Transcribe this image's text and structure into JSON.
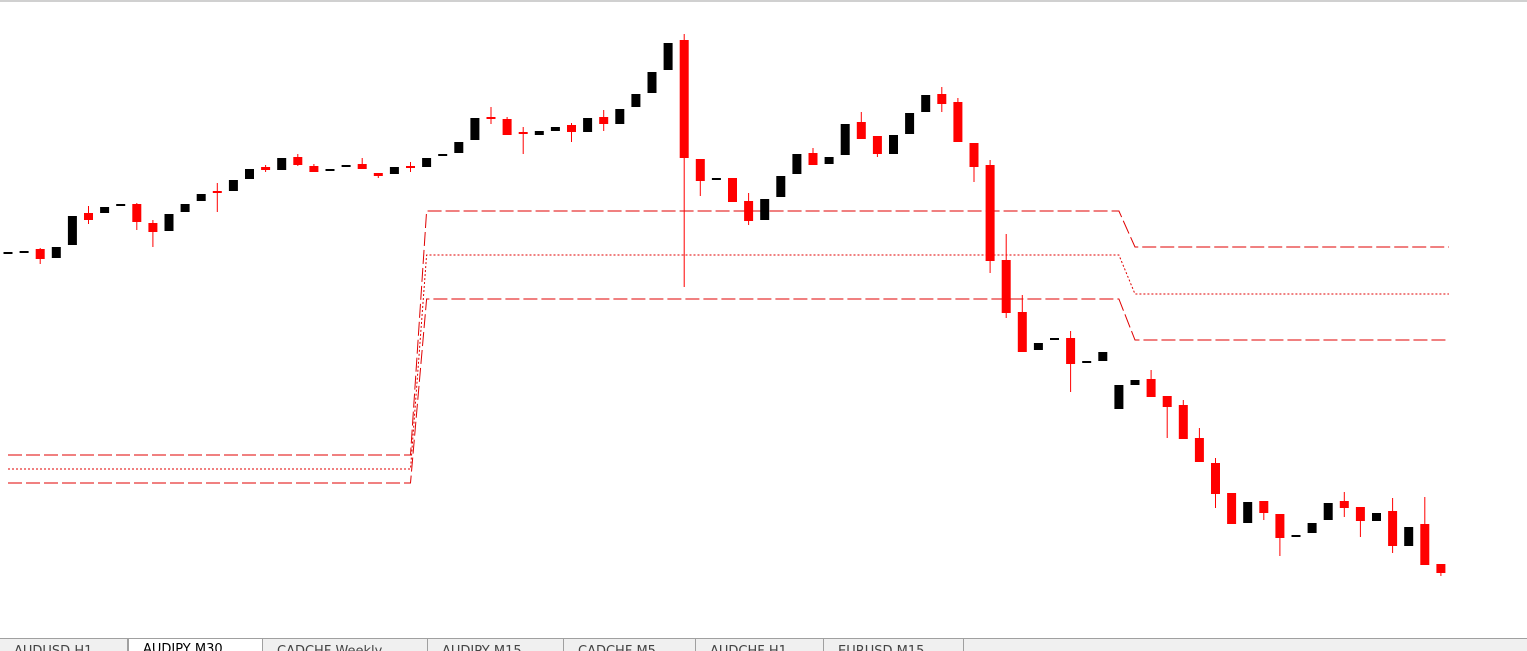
{
  "chart_data": {
    "type": "candlestick",
    "ylim": [
      0,
      600
    ],
    "up_color": "#000000",
    "down_color": "#ff0000",
    "open": [
      347,
      348,
      351,
      342,
      355,
      387,
      387,
      395,
      396,
      377,
      369,
      388,
      399,
      409,
      409,
      421,
      433,
      430,
      443,
      434,
      430,
      434,
      436,
      427,
      426,
      434,
      433,
      445,
      447,
      460,
      483,
      481,
      468,
      465,
      469,
      475,
      468,
      483,
      476,
      493,
      507,
      530,
      560,
      441,
      421,
      422,
      399,
      380,
      403,
      426,
      447,
      436,
      445,
      478,
      464,
      446,
      466,
      488,
      506,
      498,
      457,
      435,
      340,
      288,
      250,
      261,
      262,
      238,
      239,
      191,
      215,
      221,
      204,
      195,
      162,
      137,
      107,
      77,
      99,
      86,
      64,
      67,
      80,
      99,
      93,
      79,
      89,
      54,
      76,
      36
    ],
    "high": [
      347,
      348,
      352,
      353,
      384,
      394,
      393,
      395,
      397,
      380,
      386,
      396,
      406,
      417,
      420,
      431,
      435,
      442,
      446,
      436,
      430,
      434,
      442,
      427,
      433,
      438,
      442,
      445,
      458,
      482,
      493,
      483,
      473,
      469,
      473,
      477,
      482,
      490,
      491,
      506,
      528,
      557,
      566,
      441,
      421,
      422,
      407,
      401,
      424,
      446,
      452,
      443,
      476,
      488,
      464,
      465,
      487,
      505,
      513,
      502,
      457,
      440,
      366,
      305,
      257,
      261,
      269,
      238,
      248,
      215,
      220,
      230,
      204,
      200,
      172,
      142,
      107,
      98,
      99,
      86,
      64,
      77,
      97,
      108,
      93,
      87,
      102,
      73,
      103,
      36
    ],
    "low": [
      347,
      348,
      336,
      342,
      355,
      376,
      387,
      395,
      370,
      353,
      369,
      388,
      399,
      388,
      409,
      421,
      428,
      430,
      434,
      428,
      430,
      434,
      431,
      422,
      426,
      428,
      433,
      445,
      447,
      460,
      476,
      465,
      446,
      465,
      469,
      458,
      468,
      469,
      476,
      493,
      507,
      530,
      313,
      404,
      421,
      398,
      375,
      380,
      403,
      426,
      435,
      436,
      445,
      461,
      443,
      446,
      466,
      488,
      488,
      458,
      418,
      327,
      282,
      248,
      250,
      261,
      208,
      238,
      239,
      191,
      215,
      203,
      162,
      161,
      138,
      92,
      76,
      77,
      80,
      44,
      64,
      67,
      80,
      83,
      63,
      79,
      47,
      54,
      35,
      24
    ],
    "close": [
      347,
      348,
      341,
      353,
      384,
      380,
      393,
      395,
      378,
      368,
      386,
      396,
      406,
      407,
      420,
      431,
      430,
      442,
      435,
      428,
      430,
      434,
      431,
      424,
      433,
      432,
      442,
      445,
      458,
      482,
      481,
      465,
      466,
      469,
      473,
      468,
      482,
      476,
      491,
      506,
      528,
      557,
      442,
      419,
      421,
      398,
      379,
      401,
      424,
      446,
      435,
      443,
      476,
      461,
      446,
      465,
      487,
      505,
      496,
      458,
      433,
      339,
      287,
      248,
      257,
      261,
      236,
      238,
      248,
      215,
      220,
      203,
      193,
      161,
      138,
      106,
      76,
      98,
      87,
      62,
      64,
      77,
      97,
      92,
      79,
      87,
      54,
      73,
      35,
      27
    ],
    "channel": {
      "color": "#e00000",
      "x": [
        0,
        25,
        26,
        69,
        70,
        89.5
      ],
      "upper": [
        145,
        145,
        389,
        389,
        353,
        353
      ],
      "middle": [
        131,
        131,
        345,
        345,
        306,
        306
      ],
      "lower": [
        117,
        117,
        301,
        301,
        260,
        260
      ]
    }
  },
  "tabs": [
    "AUDUSD,H1",
    "AUDJPY,M30",
    "CADCHF,Weekly",
    "AUDJPY,M15",
    "CADCHF,M5",
    "AUDCHF,H1",
    "EURUSD,M15"
  ],
  "active_tab": 1
}
